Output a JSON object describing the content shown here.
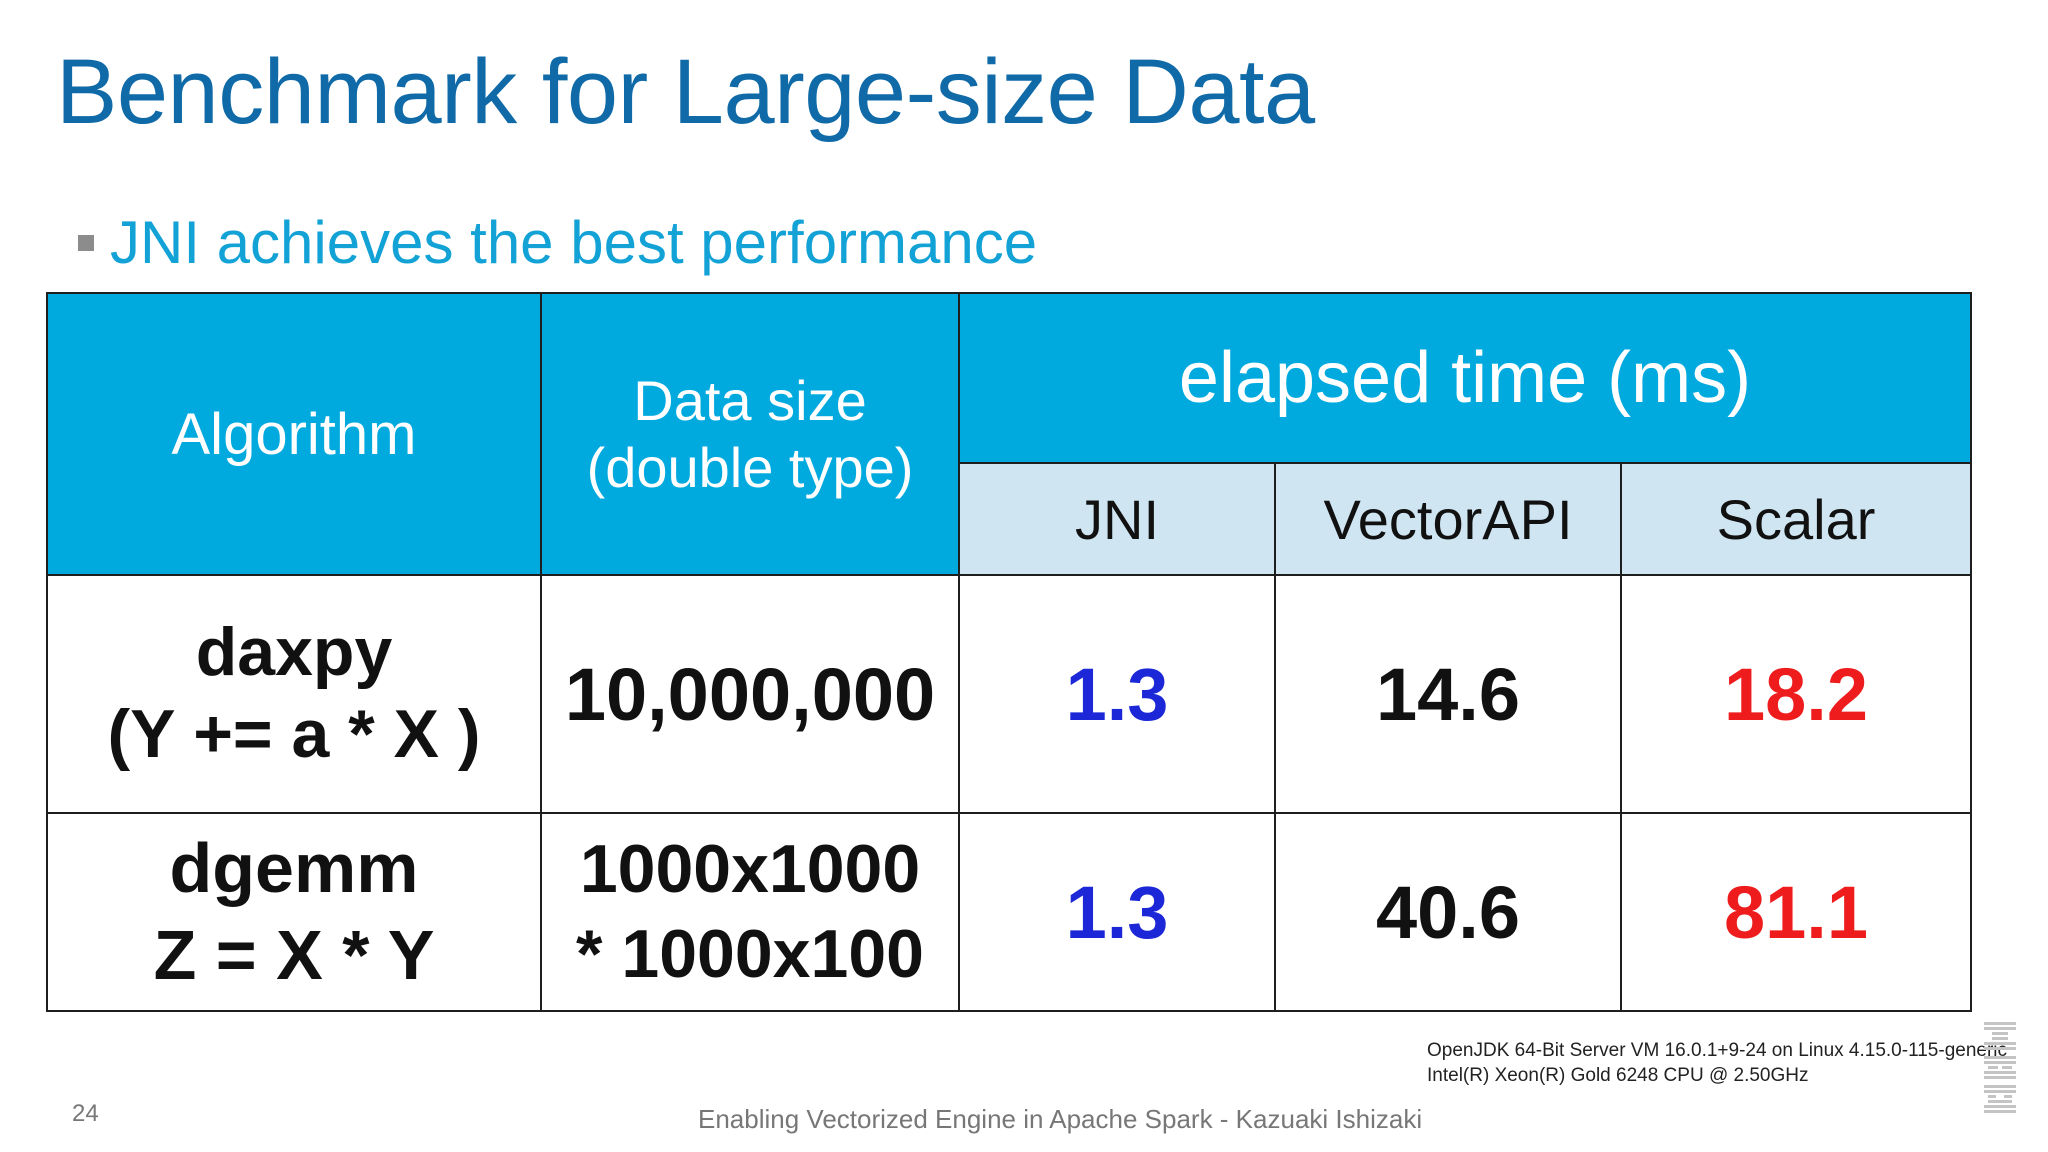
{
  "slide": {
    "title": "Benchmark for Large-size Data",
    "bullet": "JNI achieves the best performance",
    "page_number": "24",
    "footer": "Enabling Vectorized Engine in Apache Spark - Kazuaki Ishizaki",
    "env_note": [
      "OpenJDK 64-Bit Server VM 16.0.1+9-24 on Linux 4.15.0-115-generic",
      "Intel(R) Xeon(R) Gold 6248 CPU @ 2.50GHz"
    ],
    "logo": "IBM"
  },
  "table": {
    "header": {
      "algorithm": "Algorithm",
      "data_size": [
        "Data size",
        "(double type)"
      ],
      "elapsed": "elapsed time (ms)",
      "columns": [
        "JNI",
        "VectorAPI",
        "Scalar"
      ]
    },
    "rows": [
      {
        "algorithm": [
          "daxpy",
          "(Y += a * X )"
        ],
        "data_size": [
          "10,000,000"
        ],
        "jni": "1.3",
        "vectorapi": "14.6",
        "scalar": "18.2"
      },
      {
        "algorithm": [
          "dgemm",
          "Z = X * Y"
        ],
        "data_size": [
          "1000x1000",
          "* 1000x100"
        ],
        "jni": "1.3",
        "vectorapi": "40.6",
        "scalar": "81.1"
      }
    ]
  },
  "colors": {
    "title": "#0f6aa7",
    "header_bg": "#00aadf",
    "subheader_bg": "#cfe6f2",
    "jni_value": "#1c28d8",
    "scalar_value": "#ee1c1c"
  }
}
